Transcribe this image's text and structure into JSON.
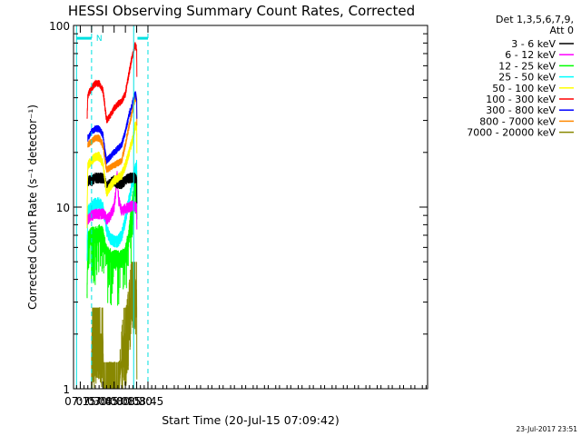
{
  "chart_data": {
    "type": "line",
    "title": "HESSI Observing Summary Count Rates, Corrected",
    "xlabel": "Start Time (20-Jul-15 07:09:42)",
    "ylabel": "Corrected Count Rate (s⁻¹ detector⁻¹)",
    "y_scale": "log",
    "ylim": [
      1,
      100
    ],
    "xlim_minutes": [
      426,
      897
    ],
    "x_ticks": [
      {
        "minute": 435,
        "label": "07:15"
      },
      {
        "minute": 450,
        "label": "07:30"
      },
      {
        "minute": 465,
        "label": "07:45"
      },
      {
        "minute": 480,
        "label": "08:00"
      },
      {
        "minute": 495,
        "label": "08:15"
      },
      {
        "minute": 510,
        "label": "08:30"
      },
      {
        "minute": 525,
        "label": "08:45"
      }
    ],
    "y_ticks": [
      {
        "value": 1,
        "label": "1"
      },
      {
        "value": 10,
        "label": "10"
      },
      {
        "value": 100,
        "label": "100"
      }
    ],
    "legend_header": [
      "Det 1,3,5,6,7,9,",
      "Att 0"
    ],
    "legend_position": "right",
    "series": [
      {
        "name": "3 - 6 keV",
        "color": "#000000",
        "noise": 0.07,
        "x": [
          "07:25",
          "07:30",
          "07:35",
          "07:40",
          "07:45",
          "07:48",
          "07:50",
          "07:55",
          "08:00",
          "08:05",
          "08:10",
          "08:15",
          "08:20",
          "08:25",
          "08:28",
          "08:30",
          "08:30.3"
        ],
        "values": [
          14,
          14,
          14.5,
          14.5,
          14.5,
          14,
          13,
          13.5,
          14,
          13.5,
          13.5,
          14,
          14.5,
          14.5,
          14.5,
          14,
          9
        ]
      },
      {
        "name": "6 - 12 keV",
        "color": "#ff00ff",
        "noise": 0.07,
        "x": [
          "07:25",
          "07:30",
          "07:35",
          "07:40",
          "07:45",
          "07:48",
          "07:50",
          "07:55",
          "08:00",
          "08:02",
          "08:04",
          "08:06",
          "08:10",
          "08:15",
          "08:20",
          "08:25",
          "08:28",
          "08:30",
          "08:30.3"
        ],
        "values": [
          8.5,
          9,
          9.2,
          9.2,
          9.2,
          9,
          8.5,
          9,
          10,
          12,
          15,
          11,
          9.5,
          9.8,
          10,
          10.2,
          10,
          10,
          7
        ]
      },
      {
        "name": "12 - 25 keV",
        "color": "#00ff00",
        "noise": 0.12,
        "x": [
          "07:24",
          "07:25",
          "07:30",
          "07:35",
          "07:40",
          "07:45",
          "07:48",
          "07:50",
          "07:55",
          "08:00",
          "08:05",
          "08:10",
          "08:15",
          "08:20",
          "08:25",
          "08:28",
          "08:30",
          "08:30.3"
        ],
        "values": [
          3,
          6.5,
          7,
          7,
          7.2,
          7,
          6,
          5.5,
          5.3,
          5.2,
          5.2,
          5.2,
          5.5,
          7,
          11,
          14,
          15,
          8
        ]
      },
      {
        "name": "25 - 50 keV",
        "color": "#00ffff",
        "noise": 0.08,
        "x": [
          "07:24",
          "07:25",
          "07:30",
          "07:35",
          "07:40",
          "07:45",
          "07:48",
          "07:50",
          "07:55",
          "08:00",
          "08:05",
          "08:10",
          "08:15",
          "08:20",
          "08:25",
          "08:28",
          "08:30",
          "08:30.3"
        ],
        "values": [
          5,
          9.5,
          10,
          10.5,
          10.5,
          10,
          8.5,
          7.5,
          6.7,
          6.5,
          6.5,
          7,
          8.5,
          11,
          14,
          16,
          17,
          10
        ]
      },
      {
        "name": "50 - 100 keV",
        "color": "#ffff00",
        "noise": 0.06,
        "x": [
          "07:24",
          "07:25",
          "07:30",
          "07:35",
          "07:40",
          "07:45",
          "07:48",
          "07:50",
          "07:55",
          "08:00",
          "08:05",
          "08:10",
          "08:15",
          "08:20",
          "08:25",
          "08:28",
          "08:30",
          "08:30.3"
        ],
        "values": [
          8,
          17,
          18,
          19,
          19,
          17.5,
          14,
          12,
          13,
          14,
          14.5,
          15,
          17,
          20,
          24,
          28,
          28,
          20
        ]
      },
      {
        "name": "100 - 300 keV",
        "color": "#ff0000",
        "noise": 0.045,
        "x": [
          "07:24",
          "07:25",
          "07:30",
          "07:35",
          "07:40",
          "07:45",
          "07:48",
          "07:50",
          "07:55",
          "08:00",
          "08:05",
          "08:10",
          "08:15",
          "08:20",
          "08:25",
          "08:28",
          "08:30",
          "08:30.3"
        ],
        "values": [
          30,
          41,
          45,
          48,
          48,
          44,
          35,
          30,
          32,
          35,
          37,
          38,
          42,
          55,
          70,
          78,
          75,
          50
        ]
      },
      {
        "name": "300 - 800 keV",
        "color": "#0000ff",
        "noise": 0.045,
        "x": [
          "07:25",
          "07:30",
          "07:35",
          "07:40",
          "07:45",
          "07:48",
          "07:50",
          "07:55",
          "08:00",
          "08:05",
          "08:10",
          "08:15",
          "08:20",
          "08:25",
          "08:28",
          "08:30",
          "08:30.3"
        ],
        "values": [
          24,
          26,
          27,
          27,
          25,
          20,
          18,
          19,
          20,
          21,
          22,
          26,
          32,
          38,
          42,
          40,
          28
        ]
      },
      {
        "name": "800 - 7000 keV",
        "color": "#ff8800",
        "noise": 0.045,
        "x": [
          "07:25",
          "07:30",
          "07:35",
          "07:40",
          "07:45",
          "07:48",
          "07:50",
          "07:55",
          "08:00",
          "08:05",
          "08:10",
          "08:15",
          "08:20",
          "08:25",
          "08:28",
          "08:30",
          "08:30.3"
        ],
        "values": [
          22,
          23,
          24,
          24,
          22,
          18,
          16,
          16.5,
          17,
          17.5,
          18,
          22,
          28,
          35,
          40,
          39,
          26
        ]
      },
      {
        "name": "7000 - 20000 keV",
        "color": "#888800",
        "noise": 0,
        "x": [
          "07:30",
          "07:31",
          "07:45",
          "07:46",
          "08:07",
          "08:10",
          "08:13",
          "08:16",
          "08:19",
          "08:21",
          "08:22",
          "08:24",
          "08:26",
          "08:28",
          "08:30",
          "08:30.3"
        ],
        "values": [
          1,
          2,
          2,
          1,
          1,
          1.5,
          2,
          2,
          2.5,
          3,
          3.3,
          4,
          4,
          4,
          3.5,
          1
        ]
      }
    ],
    "annotations": [
      {
        "text": "N",
        "color": "#00e0e0"
      }
    ],
    "overlay": {
      "color": "#00e0e0",
      "solid_segments": [
        [
          "07:10",
          "07:30"
        ],
        [
          "08:31",
          "08:45"
        ]
      ],
      "dashed_vlines": [
        "07:30",
        "08:45"
      ],
      "solid_vlines": [
        "07:10",
        "08:26"
      ],
      "level": 85
    },
    "timestamp": "23-Jul-2017 23:51"
  }
}
